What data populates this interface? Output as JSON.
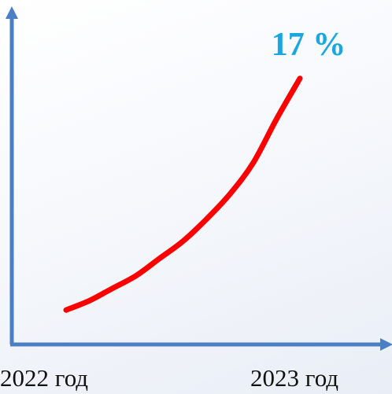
{
  "chart_data": {
    "type": "line",
    "categories": [
      "2022 год",
      "2023 год"
    ],
    "series": [
      {
        "x": [
          0,
          0.1,
          0.2,
          0.3,
          0.4,
          0.5,
          0.6,
          0.7,
          0.8,
          0.9,
          1.0
        ],
        "values": [
          2.2,
          2.8,
          3.6,
          4.4,
          5.5,
          6.6,
          8.0,
          9.6,
          11.6,
          14.4,
          17.0
        ]
      }
    ],
    "end_label": "17 %",
    "ylim": [
      0,
      20
    ],
    "grid": false,
    "line_color": "#ff0000",
    "axis_color": "#4a7fc6",
    "label_color": "#1aa6e0"
  }
}
